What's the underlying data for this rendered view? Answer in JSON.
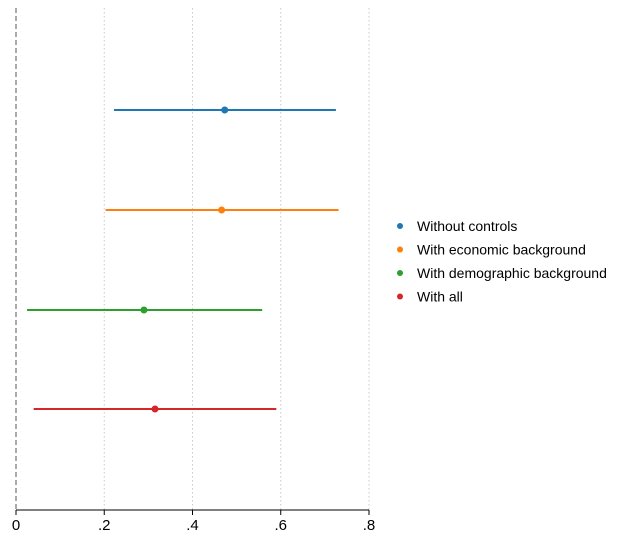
{
  "chart_data": {
    "type": "coefficient-plot",
    "title": "",
    "xlabel": "",
    "ylabel": "",
    "xlim": [
      0,
      0.8
    ],
    "x_ticks": [
      {
        "value": 0,
        "label": "0"
      },
      {
        "value": 0.2,
        "label": ".2"
      },
      {
        "value": 0.4,
        "label": ".4"
      },
      {
        "value": 0.6,
        "label": ".6"
      },
      {
        "value": 0.8,
        "label": ".8"
      }
    ],
    "reference_line": {
      "value": 0,
      "style": "dashed"
    },
    "grid": {
      "x": true,
      "style": "dotted"
    },
    "legend_position": "right",
    "series": [
      {
        "name": "Without controls",
        "color": "#1f77b4",
        "estimate": 0.473,
        "ci_low": 0.222,
        "ci_high": 0.725
      },
      {
        "name": "With economic background",
        "color": "#ff7f0e",
        "estimate": 0.466,
        "ci_low": 0.203,
        "ci_high": 0.731
      },
      {
        "name": "With demographic background",
        "color": "#2ca02c",
        "estimate": 0.29,
        "ci_low": 0.025,
        "ci_high": 0.558
      },
      {
        "name": "With all",
        "color": "#d62728",
        "estimate": 0.315,
        "ci_low": 0.04,
        "ci_high": 0.59
      }
    ]
  }
}
